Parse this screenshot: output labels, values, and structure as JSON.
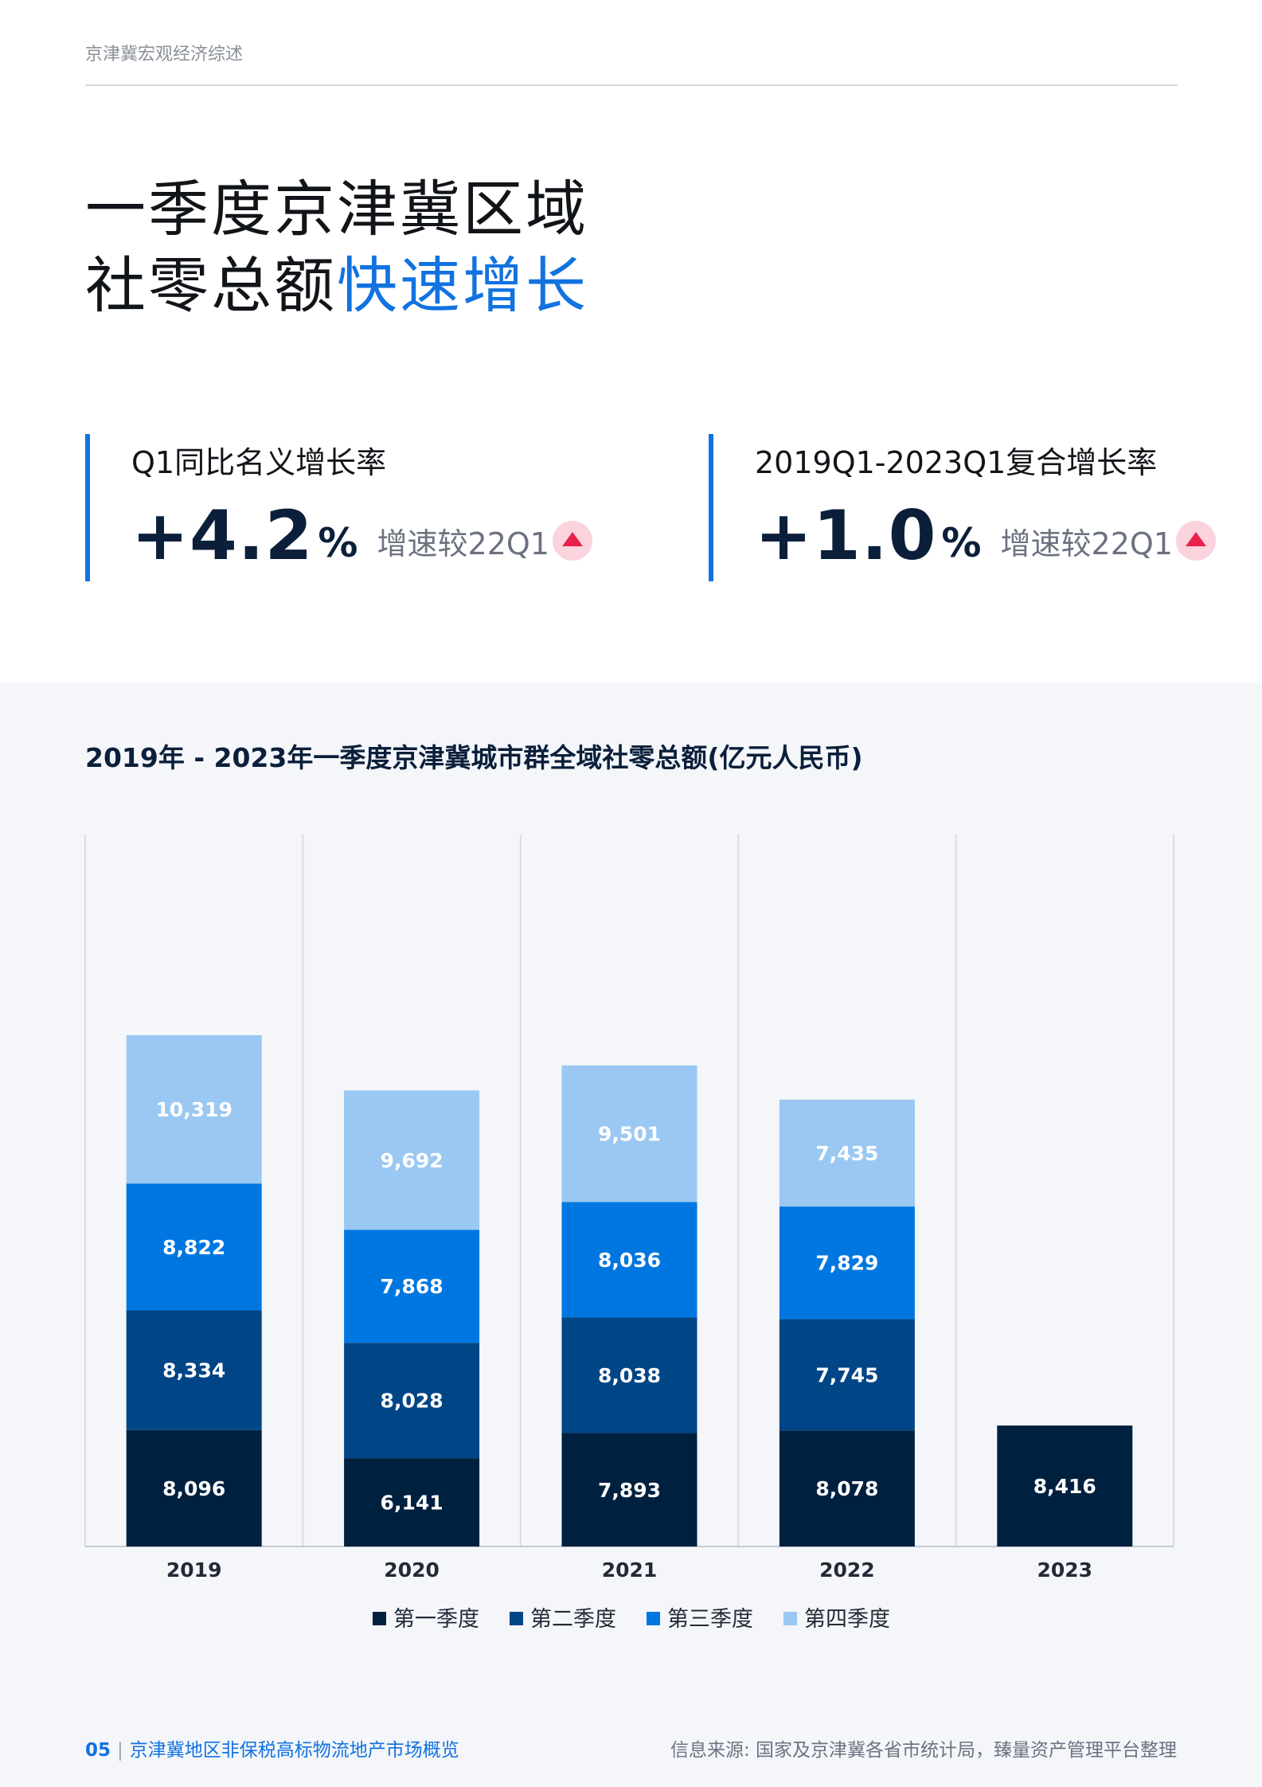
{
  "header": {
    "label": "京津冀宏观经济综述"
  },
  "title": {
    "line1": "一季度京津冀区域",
    "line2_plain": "社零总额",
    "line2_accent": "快速增长"
  },
  "kpis": [
    {
      "label": "Q1同比名义增长率",
      "value": "+4.2",
      "unit": "%",
      "note": "增速较22Q1"
    },
    {
      "label": "2019Q1-2023Q1复合增长率",
      "value": "+1.0",
      "unit": "%",
      "note": "增速较22Q1"
    }
  ],
  "colors": {
    "accent": "#1172e0",
    "q1": "#00203f",
    "q2": "#004585",
    "q3": "#0077e0",
    "q4": "#9ac8f2",
    "up": "#e8204a"
  },
  "chart_data": {
    "type": "bar",
    "stacked": true,
    "title": "2019年 - 2023年一季度京津冀城市群全域社零总额(亿元人民币)",
    "categories": [
      "2019",
      "2020",
      "2021",
      "2022",
      "2023"
    ],
    "series": [
      {
        "name": "第一季度",
        "values": [
          8096,
          6141,
          7893,
          8078,
          8416
        ],
        "labels": [
          "8,096",
          "6,141",
          "7,893",
          "8,078",
          "8,416"
        ]
      },
      {
        "name": "第二季度",
        "values": [
          8334,
          8028,
          8038,
          7745,
          null
        ],
        "labels": [
          "8,334",
          "8,028",
          "8,038",
          "7,745",
          ""
        ]
      },
      {
        "name": "第三季度",
        "values": [
          8822,
          7868,
          8036,
          7829,
          null
        ],
        "labels": [
          "8,822",
          "7,868",
          "8,036",
          "7,829",
          ""
        ]
      },
      {
        "name": "第四季度",
        "values": [
          10319,
          9692,
          9501,
          7435,
          null
        ],
        "labels": [
          "10,319",
          "9,692",
          "9,501",
          "7,435",
          ""
        ]
      }
    ],
    "legend_position": "bottom-center",
    "grid": "vertical"
  },
  "footer": {
    "page": "05",
    "separator": "|",
    "report": "京津冀地区非保税高标物流地产市场概览",
    "source": "信息来源: 国家及京津冀各省市统计局，臻量资产管理平台整理"
  }
}
